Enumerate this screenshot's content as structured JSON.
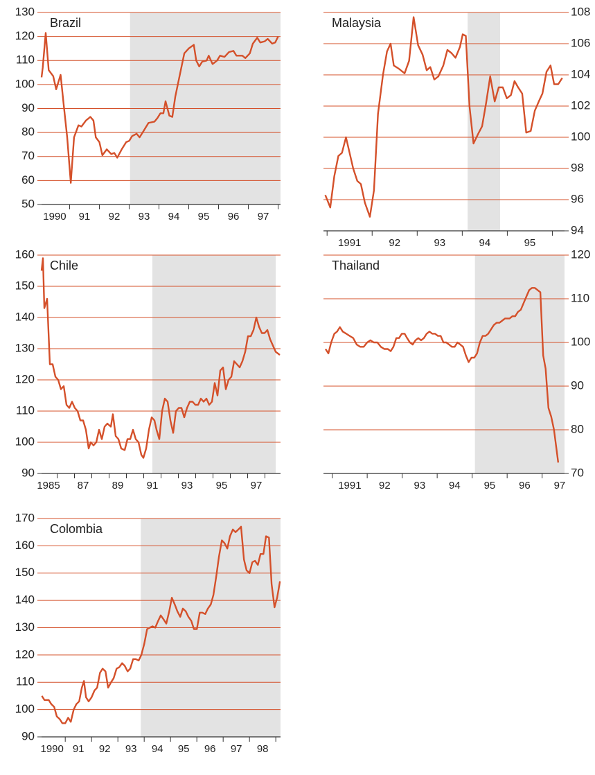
{
  "chart_data": [
    {
      "type": "line",
      "title": "Brazil",
      "yaxis_side": "left",
      "color": "#d4502a",
      "grid": true,
      "shade_color": "#e3e3e3",
      "xlim": [
        1990.06,
        1998.08
      ],
      "ylim": [
        50,
        130
      ],
      "yticks": [
        50,
        60,
        70,
        80,
        90,
        100,
        110,
        120,
        130
      ],
      "xticks": [
        {
          "value": 1990.5,
          "label": "1990"
        },
        {
          "value": 1991.5,
          "label": "91"
        },
        {
          "value": 1992.5,
          "label": "92"
        },
        {
          "value": 1993.5,
          "label": "93"
        },
        {
          "value": 1994.5,
          "label": "94"
        },
        {
          "value": 1995.5,
          "label": "95"
        },
        {
          "value": 1996.5,
          "label": "96"
        },
        {
          "value": 1997.5,
          "label": "97"
        }
      ],
      "shade": [
        1993.03,
        1998.08
      ],
      "x": [
        1990.06,
        1990.1,
        1990.2,
        1990.3,
        1990.45,
        1990.55,
        1990.7,
        1990.8,
        1990.92,
        1991.04,
        1991.15,
        1991.3,
        1991.4,
        1991.55,
        1991.7,
        1991.8,
        1991.88,
        1992.0,
        1992.1,
        1992.25,
        1992.4,
        1992.5,
        1992.6,
        1992.75,
        1992.9,
        1993.0,
        1993.1,
        1993.25,
        1993.35,
        1993.5,
        1993.65,
        1993.85,
        1993.95,
        1994.05,
        1994.15,
        1994.22,
        1994.35,
        1994.45,
        1994.55,
        1994.7,
        1994.85,
        1995.0,
        1995.17,
        1995.25,
        1995.35,
        1995.45,
        1995.6,
        1995.67,
        1995.8,
        1995.95,
        1996.05,
        1996.2,
        1996.35,
        1996.5,
        1996.6,
        1996.8,
        1996.9,
        1997.05,
        1997.15,
        1997.3,
        1997.4,
        1997.55,
        1997.65,
        1997.8,
        1997.9,
        1998.0
      ],
      "values": [
        103,
        107,
        121.5,
        106,
        103.5,
        98,
        104,
        92,
        78,
        59,
        78,
        83,
        82.5,
        85,
        86.5,
        85,
        78,
        76,
        70.5,
        73,
        71,
        71.5,
        69.5,
        73,
        76,
        76.5,
        78.5,
        79.5,
        78,
        81,
        84,
        84.5,
        86,
        88,
        88,
        93,
        87,
        86.5,
        95,
        104,
        113,
        115,
        116.5,
        110,
        107.5,
        109.5,
        110,
        112,
        108.5,
        110,
        112,
        111.5,
        113.5,
        114,
        112,
        112,
        111,
        113,
        117,
        119.5,
        117.5,
        118,
        119,
        117,
        117.5,
        120
      ]
    },
    {
      "type": "line",
      "title": "Malaysia",
      "yaxis_side": "right",
      "color": "#d4502a",
      "grid": true,
      "shade_color": "#e3e3e3",
      "xlim": [
        1990.92,
        1996.27
      ],
      "ylim": [
        94,
        108
      ],
      "yticks": [
        94,
        96,
        98,
        100,
        102,
        104,
        106,
        108
      ],
      "xticks": [
        {
          "value": 1991.5,
          "label": "1991"
        },
        {
          "value": 1992.5,
          "label": "92"
        },
        {
          "value": 1993.5,
          "label": "93"
        },
        {
          "value": 1994.5,
          "label": "94"
        },
        {
          "value": 1995.5,
          "label": "95"
        }
      ],
      "shade": [
        1994.12,
        1994.84
      ],
      "x": [
        1990.96,
        1991.07,
        1991.16,
        1991.25,
        1991.33,
        1991.42,
        1991.5,
        1991.58,
        1991.67,
        1991.75,
        1991.84,
        1991.95,
        1992.04,
        1992.13,
        1992.24,
        1992.33,
        1992.41,
        1992.48,
        1992.59,
        1992.72,
        1992.82,
        1992.92,
        1993.02,
        1993.12,
        1993.21,
        1993.29,
        1993.38,
        1993.47,
        1993.58,
        1993.67,
        1993.76,
        1993.85,
        1993.95,
        1994.01,
        1994.08,
        1994.16,
        1994.25,
        1994.35,
        1994.44,
        1994.53,
        1994.62,
        1994.72,
        1994.81,
        1994.9,
        1994.99,
        1995.08,
        1995.16,
        1995.24,
        1995.33,
        1995.42,
        1995.52,
        1995.61,
        1995.7,
        1995.78,
        1995.87,
        1995.96,
        1996.04,
        1996.13,
        1996.22
      ],
      "values": [
        96.3,
        95.5,
        97.5,
        98.8,
        99,
        100,
        99,
        98,
        97.2,
        97,
        95.8,
        94.9,
        96.6,
        101.5,
        104,
        105.5,
        106,
        104.6,
        104.4,
        104.1,
        104.9,
        107.7,
        105.9,
        105.3,
        104.3,
        104.5,
        103.7,
        103.9,
        104.6,
        105.6,
        105.4,
        105.1,
        105.8,
        106.6,
        106.5,
        102,
        99.6,
        100.2,
        100.7,
        102.2,
        103.9,
        102.3,
        103.2,
        103.2,
        102.5,
        102.7,
        103.6,
        103.2,
        102.8,
        100.3,
        100.4,
        101.7,
        102.3,
        102.8,
        104.2,
        104.6,
        103.4,
        103.4,
        103.8
      ]
    },
    {
      "type": "line",
      "title": "Chile",
      "yaxis_side": "left",
      "color": "#d4502a",
      "grid": true,
      "shade_color": "#e3e3e3",
      "xlim": [
        1985.1,
        1998.9
      ],
      "ylim": [
        90,
        160
      ],
      "yticks": [
        90,
        100,
        110,
        120,
        130,
        140,
        150,
        160
      ],
      "xticks": [
        {
          "value": 1985.5,
          "label": "1985"
        },
        {
          "value": 1987.5,
          "label": "87"
        },
        {
          "value": 1989.5,
          "label": "89"
        },
        {
          "value": 1991.5,
          "label": "91"
        },
        {
          "value": 1993.5,
          "label": "93"
        },
        {
          "value": 1995.5,
          "label": "95"
        },
        {
          "value": 1997.5,
          "label": "97"
        }
      ],
      "shade": [
        1991.5,
        1998.62
      ],
      "x": [
        1985.1,
        1985.18,
        1985.26,
        1985.42,
        1985.58,
        1985.74,
        1985.9,
        1986.06,
        1986.22,
        1986.38,
        1986.54,
        1986.7,
        1986.86,
        1987.02,
        1987.18,
        1987.34,
        1987.5,
        1987.66,
        1987.82,
        1987.94,
        1988.1,
        1988.26,
        1988.42,
        1988.58,
        1988.74,
        1988.9,
        1989.1,
        1989.22,
        1989.38,
        1989.54,
        1989.7,
        1989.9,
        1990.06,
        1990.22,
        1990.38,
        1990.54,
        1990.7,
        1990.86,
        1990.98,
        1991.14,
        1991.3,
        1991.46,
        1991.62,
        1991.74,
        1991.9,
        1992.06,
        1992.22,
        1992.38,
        1992.54,
        1992.7,
        1992.86,
        1993.02,
        1993.18,
        1993.34,
        1993.5,
        1993.66,
        1993.82,
        1993.98,
        1994.14,
        1994.3,
        1994.46,
        1994.62,
        1994.78,
        1994.94,
        1995.1,
        1995.26,
        1995.42,
        1995.58,
        1995.74,
        1995.9,
        1996.06,
        1996.22,
        1996.38,
        1996.54,
        1996.7,
        1996.86,
        1997.02,
        1997.18,
        1997.34,
        1997.5,
        1997.66,
        1997.82,
        1997.98,
        1998.14,
        1998.3,
        1998.46,
        1998.62,
        1998.86
      ],
      "values": [
        155,
        159,
        143,
        146,
        125,
        125,
        121,
        120,
        117,
        118,
        112,
        111,
        113,
        111,
        110,
        107,
        107,
        104,
        98,
        100,
        99,
        100,
        104,
        101,
        105,
        106,
        105,
        109,
        102,
        101,
        98,
        97.5,
        101,
        101,
        104,
        101,
        100,
        96,
        95,
        98,
        104,
        108,
        107,
        104,
        101,
        110,
        114,
        113,
        107,
        103,
        110,
        111,
        111,
        108,
        111,
        113,
        113,
        112,
        112,
        114,
        113,
        114,
        112,
        113,
        119,
        115,
        123,
        124,
        117,
        120,
        121,
        126,
        125,
        124,
        126,
        129,
        134,
        134,
        136,
        140,
        137,
        135,
        135,
        136,
        133,
        131,
        129,
        128
      ]
    },
    {
      "type": "line",
      "title": "Thailand",
      "yaxis_side": "right",
      "color": "#d4502a",
      "grid": true,
      "shade_color": "#e3e3e3",
      "xlim": [
        1990.75,
        1997.64
      ],
      "ylim": [
        70,
        120
      ],
      "yticks": [
        70,
        80,
        90,
        100,
        110,
        120
      ],
      "xticks": [
        {
          "value": 1991.5,
          "label": "1991"
        },
        {
          "value": 1992.5,
          "label": "92"
        },
        {
          "value": 1993.5,
          "label": "93"
        },
        {
          "value": 1994.5,
          "label": "94"
        },
        {
          "value": 1995.5,
          "label": "95"
        },
        {
          "value": 1996.5,
          "label": "96"
        },
        {
          "value": 1997.5,
          "label": "97"
        }
      ],
      "shade": [
        1995.08,
        1997.64
      ],
      "x": [
        1990.81,
        1990.89,
        1990.97,
        1991.06,
        1991.14,
        1991.22,
        1991.3,
        1991.4,
        1991.5,
        1991.6,
        1991.7,
        1991.8,
        1991.9,
        1992.0,
        1992.09,
        1992.19,
        1992.29,
        1992.39,
        1992.49,
        1992.59,
        1992.67,
        1992.75,
        1992.83,
        1992.91,
        1992.99,
        1993.07,
        1993.14,
        1993.22,
        1993.3,
        1993.38,
        1993.46,
        1993.54,
        1993.62,
        1993.7,
        1993.78,
        1993.86,
        1993.94,
        1994.02,
        1994.1,
        1994.18,
        1994.26,
        1994.34,
        1994.42,
        1994.5,
        1994.58,
        1994.66,
        1994.74,
        1994.82,
        1994.9,
        1994.98,
        1995.06,
        1995.14,
        1995.22,
        1995.3,
        1995.38,
        1995.46,
        1995.54,
        1995.62,
        1995.7,
        1995.78,
        1995.86,
        1995.94,
        1995.99,
        1996.07,
        1996.15,
        1996.23,
        1996.31,
        1996.39,
        1996.47,
        1996.55,
        1996.63,
        1996.71,
        1996.79,
        1996.87,
        1996.95,
        1997.03,
        1997.1,
        1997.18,
        1997.26,
        1997.34,
        1997.46
      ],
      "values": [
        98.5,
        97.5,
        100,
        102,
        102.5,
        103.5,
        102.5,
        102,
        101.5,
        101,
        99.5,
        99,
        99,
        100,
        100.5,
        100,
        100,
        99,
        98.5,
        98.5,
        98,
        99,
        101,
        101,
        102,
        102,
        101,
        100,
        99.5,
        100.5,
        101,
        100.5,
        101,
        102,
        102.5,
        102,
        102,
        101.5,
        101.5,
        100,
        100,
        99.5,
        99,
        99,
        100,
        99.5,
        99,
        97,
        95.5,
        96.5,
        96.5,
        97.5,
        100,
        101.5,
        101.5,
        102,
        103,
        104,
        104.5,
        104.5,
        105,
        105.5,
        105.5,
        105.5,
        106,
        106,
        107,
        107.5,
        109,
        110.5,
        112,
        112.5,
        112.5,
        112,
        111.5,
        97,
        94,
        85,
        83,
        80,
        72.5
      ]
    },
    {
      "type": "line",
      "title": "Colombia",
      "yaxis_side": "left",
      "color": "#d4502a",
      "grid": true,
      "shade_color": "#e3e3e3",
      "xlim": [
        1990.1,
        1999.18
      ],
      "ylim": [
        90,
        170
      ],
      "yticks": [
        90,
        100,
        110,
        120,
        130,
        140,
        150,
        160,
        170
      ],
      "xticks": [
        {
          "value": 1990.5,
          "label": "1990"
        },
        {
          "value": 1991.5,
          "label": "91"
        },
        {
          "value": 1992.5,
          "label": "92"
        },
        {
          "value": 1993.5,
          "label": "93"
        },
        {
          "value": 1994.5,
          "label": "94"
        },
        {
          "value": 1995.5,
          "label": "95"
        },
        {
          "value": 1996.5,
          "label": "96"
        },
        {
          "value": 1997.5,
          "label": "97"
        },
        {
          "value": 1998.5,
          "label": "98"
        }
      ],
      "shade": [
        1993.87,
        1999.18
      ],
      "x": [
        1990.11,
        1990.21,
        1990.37,
        1990.47,
        1990.58,
        1990.68,
        1990.79,
        1990.89,
        1991.0,
        1991.11,
        1991.21,
        1991.32,
        1991.42,
        1991.53,
        1991.63,
        1991.71,
        1991.79,
        1991.89,
        1992.0,
        1992.11,
        1992.21,
        1992.32,
        1992.42,
        1992.53,
        1992.63,
        1992.74,
        1992.84,
        1992.95,
        1993.05,
        1993.16,
        1993.26,
        1993.37,
        1993.47,
        1993.58,
        1993.68,
        1993.79,
        1993.89,
        1994.0,
        1994.11,
        1994.21,
        1994.32,
        1994.42,
        1994.53,
        1994.63,
        1994.74,
        1994.84,
        1994.95,
        1995.05,
        1995.16,
        1995.26,
        1995.37,
        1995.47,
        1995.58,
        1995.68,
        1995.79,
        1995.89,
        1996.0,
        1996.11,
        1996.21,
        1996.32,
        1996.42,
        1996.53,
        1996.63,
        1996.74,
        1996.84,
        1996.95,
        1997.05,
        1997.16,
        1997.26,
        1997.37,
        1997.47,
        1997.58,
        1997.68,
        1997.79,
        1997.89,
        1998.0,
        1998.11,
        1998.21,
        1998.32,
        1998.42,
        1998.53,
        1998.63,
        1998.74,
        1998.84,
        1998.95,
        1999.05,
        1999.16
      ],
      "values": [
        105,
        103.5,
        103.5,
        102,
        101,
        97.5,
        96.5,
        95,
        95,
        97,
        95.5,
        100,
        102,
        103,
        108,
        110.5,
        104.5,
        103,
        104.5,
        107,
        108,
        113.5,
        115,
        114,
        108,
        110,
        111.5,
        115,
        115.5,
        117,
        116,
        114,
        115,
        118.5,
        118.5,
        118,
        120,
        124,
        129.5,
        130,
        130.5,
        130,
        132.5,
        134.5,
        133,
        131.5,
        136,
        141,
        138.5,
        136,
        134,
        137,
        136,
        134,
        132.5,
        129.5,
        129.5,
        135.5,
        135.5,
        135,
        137,
        138.5,
        142,
        149,
        156,
        162,
        161,
        159,
        163.5,
        166,
        165,
        166,
        167,
        155,
        151,
        150,
        154,
        154.5,
        153,
        157,
        157,
        163.5,
        163,
        146,
        137.5,
        141,
        147
      ]
    }
  ]
}
